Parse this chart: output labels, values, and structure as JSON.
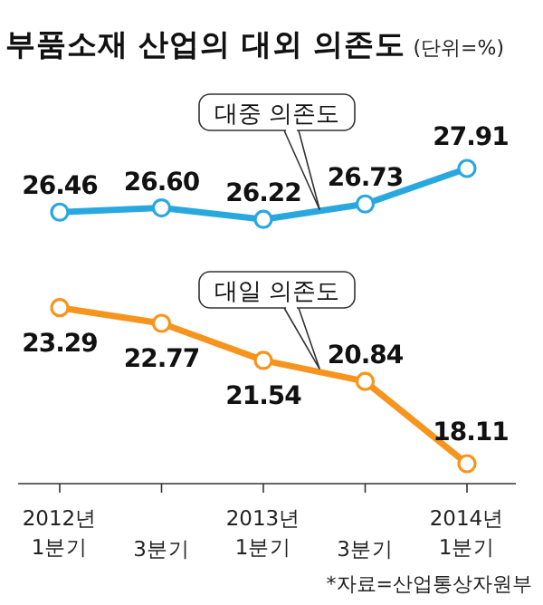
{
  "chart_data": {
    "type": "line",
    "title": "부품소재 산업의 대외 의존도",
    "subtitle": "(단위=%)",
    "categories": [
      "2012년 1분기",
      "3분기",
      "2013년 1분기",
      "3분기",
      "2014년 1분기"
    ],
    "series": [
      {
        "name": "대중 의존도",
        "color": "#29a8e0",
        "values": [
          26.46,
          26.6,
          26.22,
          26.73,
          27.91
        ],
        "value_labels": [
          "26.46",
          "26.60",
          "26.22",
          "26.73",
          "27.91"
        ]
      },
      {
        "name": "대일 의존도",
        "color": "#f7941d",
        "values": [
          23.29,
          22.77,
          21.54,
          20.84,
          18.11
        ],
        "value_labels": [
          "23.29",
          "22.77",
          "21.54",
          "20.84",
          "18.11"
        ]
      }
    ],
    "marker": "circle",
    "annotations": [
      "*자료=산업통상자원부"
    ]
  }
}
